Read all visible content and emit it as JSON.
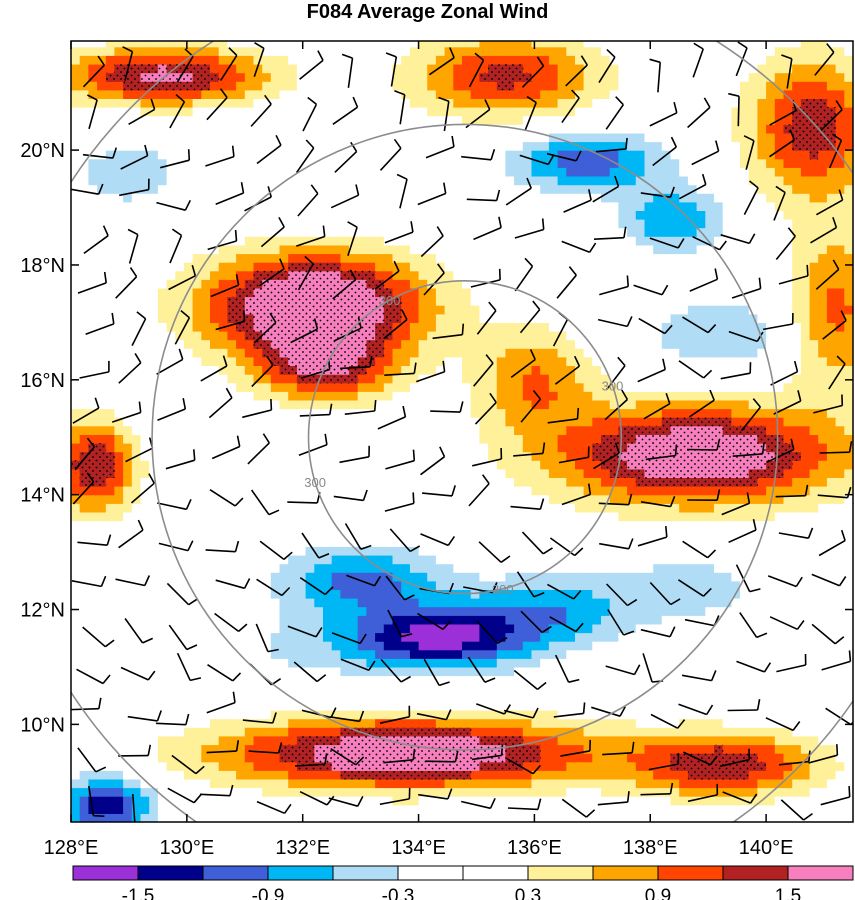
{
  "chart_data": {
    "type": "heatmap",
    "title": "F084 Average Zonal Wind",
    "xlabel": "",
    "ylabel": "",
    "xlim": [
      128.0,
      141.5
    ],
    "ylim": [
      8.3,
      21.9
    ],
    "x_ticks": [
      128,
      130,
      132,
      134,
      136,
      138,
      140
    ],
    "x_tick_labels": [
      "128°E",
      "130°E",
      "132°E",
      "134°E",
      "136°E",
      "138°E",
      "140°E"
    ],
    "y_ticks": [
      10,
      12,
      14,
      16,
      18,
      20
    ],
    "y_tick_labels": [
      "10°N",
      "12°N",
      "14°N",
      "16°N",
      "18°N",
      "20°N"
    ],
    "colorbar": {
      "boundaries": [
        -1.8,
        -1.5,
        -1.2,
        -0.9,
        -0.6,
        -0.3,
        0.0,
        0.3,
        0.6,
        0.9,
        1.2,
        1.5,
        1.8
      ],
      "labeled_values": [
        -1.5,
        -0.9,
        -0.3,
        0.3,
        0.9,
        1.5
      ],
      "labels": [
        "-1.5",
        "-0.9",
        "-0.3",
        "0.3",
        "0.9",
        "1.5"
      ],
      "colors": [
        "#9b30d9",
        "#00008b",
        "#3f5fd8",
        "#00b7f5",
        "#b0dcf5",
        "#ffffff",
        "#ffffff",
        "#fff09a",
        "#ffa500",
        "#ff4500",
        "#b22222",
        "#f77fbe"
      ]
    },
    "stipple_above": 1.2,
    "range_rings": {
      "center": [
        134.8,
        15.0
      ],
      "radii_deg": [
        2.7,
        5.4,
        8.1
      ],
      "label": "300"
    }
  }
}
